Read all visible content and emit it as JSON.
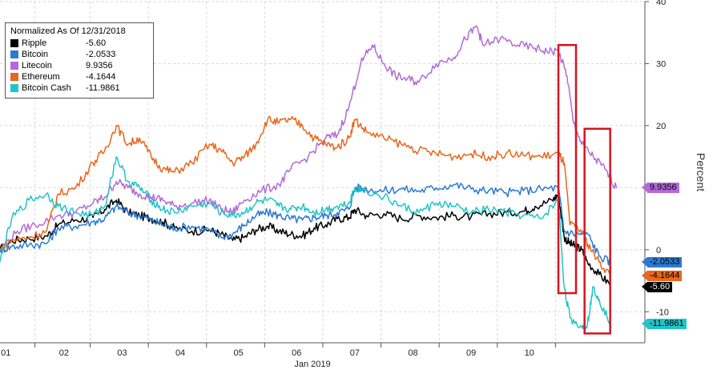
{
  "chart_data": {
    "type": "line",
    "x_tick_labels": [
      "01",
      "02",
      "03",
      "04",
      "05",
      "06",
      "07",
      "08",
      "09",
      "10"
    ],
    "x_group_label": "Jan 2019",
    "y_ticks": [
      40,
      30,
      20,
      10,
      0,
      -10
    ],
    "ylim": [
      -15,
      40
    ],
    "ylabel": "Percent",
    "legend_title": "Normalized As Of 12/31/2018",
    "legend_position": "top-left",
    "grid": true,
    "series": [
      {
        "name": "Ripple",
        "value_label": "-5.60",
        "color": "#000000",
        "last": -5.6,
        "points": [
          [
            0.0,
            0.0
          ],
          [
            0.2,
            1.5
          ],
          [
            0.5,
            1.8
          ],
          [
            0.8,
            2.2
          ],
          [
            1.0,
            4.0
          ],
          [
            1.3,
            4.8
          ],
          [
            1.6,
            5.2
          ],
          [
            1.8,
            6.5
          ],
          [
            2.0,
            8.0
          ],
          [
            2.2,
            6.0
          ],
          [
            2.4,
            5.5
          ],
          [
            2.6,
            5.0
          ],
          [
            2.8,
            4.5
          ],
          [
            3.0,
            3.5
          ],
          [
            3.3,
            3.0
          ],
          [
            3.6,
            3.2
          ],
          [
            3.8,
            2.5
          ],
          [
            4.0,
            1.5
          ],
          [
            4.2,
            2.0
          ],
          [
            4.4,
            3.2
          ],
          [
            4.6,
            3.8
          ],
          [
            4.8,
            3.0
          ],
          [
            5.0,
            2.5
          ],
          [
            5.2,
            2.2
          ],
          [
            5.4,
            3.5
          ],
          [
            5.6,
            4.0
          ],
          [
            5.8,
            5.0
          ],
          [
            6.0,
            5.2
          ],
          [
            6.1,
            6.5
          ],
          [
            6.3,
            5.5
          ],
          [
            6.6,
            5.8
          ],
          [
            6.9,
            5.0
          ],
          [
            7.2,
            5.5
          ],
          [
            7.5,
            5.2
          ],
          [
            7.8,
            5.5
          ],
          [
            8.1,
            5.3
          ],
          [
            8.4,
            5.8
          ],
          [
            8.7,
            6.0
          ],
          [
            9.0,
            6.2
          ],
          [
            9.2,
            7.0
          ],
          [
            9.5,
            8.0
          ],
          [
            9.6,
            9.0
          ],
          [
            9.7,
            2.0
          ],
          [
            9.8,
            1.0
          ],
          [
            9.9,
            0.5
          ],
          [
            10.0,
            0.0
          ],
          [
            10.1,
            -2.0
          ],
          [
            10.3,
            -4.0
          ],
          [
            10.5,
            -5.6
          ]
        ]
      },
      {
        "name": "Bitcoin",
        "value_label": "-2.0533",
        "color": "#2b7ad2",
        "last": -2.0533,
        "points": [
          [
            0.0,
            0.0
          ],
          [
            0.2,
            0.5
          ],
          [
            0.5,
            0.8
          ],
          [
            0.8,
            1.0
          ],
          [
            1.0,
            3.5
          ],
          [
            1.3,
            3.8
          ],
          [
            1.6,
            4.5
          ],
          [
            1.8,
            5.0
          ],
          [
            2.0,
            7.0
          ],
          [
            2.2,
            6.0
          ],
          [
            2.4,
            5.5
          ],
          [
            2.6,
            4.8
          ],
          [
            2.8,
            4.0
          ],
          [
            3.0,
            3.5
          ],
          [
            3.3,
            3.8
          ],
          [
            3.6,
            3.2
          ],
          [
            3.8,
            2.0
          ],
          [
            4.0,
            2.5
          ],
          [
            4.2,
            4.0
          ],
          [
            4.4,
            5.5
          ],
          [
            4.6,
            6.0
          ],
          [
            4.8,
            5.5
          ],
          [
            5.0,
            5.0
          ],
          [
            5.2,
            4.8
          ],
          [
            5.4,
            5.2
          ],
          [
            5.6,
            5.5
          ],
          [
            5.8,
            6.0
          ],
          [
            6.0,
            6.5
          ],
          [
            6.1,
            10.0
          ],
          [
            6.3,
            9.8
          ],
          [
            6.6,
            9.5
          ],
          [
            6.9,
            9.8
          ],
          [
            7.2,
            9.5
          ],
          [
            7.5,
            10.0
          ],
          [
            7.8,
            10.5
          ],
          [
            8.1,
            9.8
          ],
          [
            8.4,
            9.5
          ],
          [
            8.7,
            9.2
          ],
          [
            9.0,
            9.5
          ],
          [
            9.3,
            9.8
          ],
          [
            9.6,
            10.0
          ],
          [
            9.7,
            3.0
          ],
          [
            9.9,
            2.5
          ],
          [
            10.1,
            2.6
          ],
          [
            10.3,
            -1.0
          ],
          [
            10.5,
            -2.05
          ]
        ]
      },
      {
        "name": "Litecoin",
        "value_label": "9.9356",
        "color": "#b36ad8",
        "last": 9.9356,
        "points": [
          [
            0.0,
            0.0
          ],
          [
            0.3,
            3.0
          ],
          [
            0.6,
            4.0
          ],
          [
            1.0,
            5.5
          ],
          [
            1.3,
            6.0
          ],
          [
            1.6,
            7.5
          ],
          [
            1.8,
            8.5
          ],
          [
            2.0,
            11.0
          ],
          [
            2.2,
            10.0
          ],
          [
            2.4,
            9.0
          ],
          [
            2.6,
            8.5
          ],
          [
            2.8,
            8.0
          ],
          [
            3.0,
            7.0
          ],
          [
            3.3,
            7.5
          ],
          [
            3.6,
            8.0
          ],
          [
            3.8,
            6.5
          ],
          [
            4.0,
            6.0
          ],
          [
            4.2,
            8.0
          ],
          [
            4.5,
            9.5
          ],
          [
            4.8,
            10.5
          ],
          [
            5.0,
            13.0
          ],
          [
            5.3,
            15.0
          ],
          [
            5.6,
            18.0
          ],
          [
            5.8,
            18.5
          ],
          [
            6.0,
            23.0
          ],
          [
            6.2,
            30.0
          ],
          [
            6.4,
            33.0
          ],
          [
            6.6,
            30.0
          ],
          [
            6.8,
            28.0
          ],
          [
            7.0,
            27.5
          ],
          [
            7.2,
            27.0
          ],
          [
            7.5,
            30.0
          ],
          [
            7.8,
            31.0
          ],
          [
            8.0,
            34.0
          ],
          [
            8.2,
            36.0
          ],
          [
            8.3,
            33.0
          ],
          [
            8.6,
            34.0
          ],
          [
            8.9,
            33.0
          ],
          [
            9.2,
            32.5
          ],
          [
            9.4,
            32.0
          ],
          [
            9.6,
            32.0
          ],
          [
            9.75,
            28.0
          ],
          [
            9.85,
            21.0
          ],
          [
            10.0,
            17.0
          ],
          [
            10.2,
            15.0
          ],
          [
            10.4,
            13.0
          ],
          [
            10.6,
            9.94
          ]
        ]
      },
      {
        "name": "Ethereum",
        "value_label": "-4.1644",
        "color": "#e8661d",
        "last": -4.1644,
        "points": [
          [
            0.0,
            0.0
          ],
          [
            0.2,
            1.5
          ],
          [
            0.5,
            2.0
          ],
          [
            0.8,
            3.0
          ],
          [
            1.0,
            9.0
          ],
          [
            1.3,
            10.0
          ],
          [
            1.6,
            14.0
          ],
          [
            1.8,
            16.0
          ],
          [
            2.0,
            20.0
          ],
          [
            2.2,
            17.0
          ],
          [
            2.4,
            18.0
          ],
          [
            2.6,
            15.0
          ],
          [
            2.8,
            13.0
          ],
          [
            3.0,
            12.5
          ],
          [
            3.3,
            14.0
          ],
          [
            3.6,
            17.0
          ],
          [
            3.8,
            16.0
          ],
          [
            4.0,
            14.0
          ],
          [
            4.2,
            15.0
          ],
          [
            4.4,
            17.0
          ],
          [
            4.6,
            21.0
          ],
          [
            4.8,
            20.5
          ],
          [
            5.0,
            21.0
          ],
          [
            5.2,
            20.0
          ],
          [
            5.4,
            18.0
          ],
          [
            5.6,
            17.0
          ],
          [
            5.8,
            16.5
          ],
          [
            6.0,
            18.0
          ],
          [
            6.1,
            21.0
          ],
          [
            6.3,
            19.0
          ],
          [
            6.6,
            18.0
          ],
          [
            6.9,
            17.0
          ],
          [
            7.2,
            16.0
          ],
          [
            7.5,
            15.5
          ],
          [
            7.8,
            15.0
          ],
          [
            8.1,
            15.5
          ],
          [
            8.4,
            15.0
          ],
          [
            8.7,
            15.5
          ],
          [
            9.0,
            15.2
          ],
          [
            9.3,
            15.0
          ],
          [
            9.6,
            15.5
          ],
          [
            9.7,
            14.0
          ],
          [
            9.8,
            4.0
          ],
          [
            10.0,
            3.0
          ],
          [
            10.1,
            1.0
          ],
          [
            10.3,
            -2.0
          ],
          [
            10.5,
            -4.16
          ]
        ]
      },
      {
        "name": "Bitcoin Cash",
        "value_label": "-11.9861",
        "color": "#22c4c8",
        "last": -11.9861,
        "points": [
          [
            0.0,
            -2.0
          ],
          [
            0.2,
            5.0
          ],
          [
            0.5,
            8.0
          ],
          [
            0.8,
            9.0
          ],
          [
            1.0,
            7.0
          ],
          [
            1.3,
            6.0
          ],
          [
            1.6,
            5.5
          ],
          [
            1.8,
            7.0
          ],
          [
            2.0,
            15.0
          ],
          [
            2.2,
            11.0
          ],
          [
            2.4,
            10.0
          ],
          [
            2.6,
            8.0
          ],
          [
            2.8,
            6.5
          ],
          [
            3.0,
            6.0
          ],
          [
            3.3,
            7.0
          ],
          [
            3.6,
            7.5
          ],
          [
            3.8,
            6.0
          ],
          [
            4.0,
            5.5
          ],
          [
            4.2,
            6.0
          ],
          [
            4.4,
            7.5
          ],
          [
            4.6,
            8.0
          ],
          [
            4.8,
            7.0
          ],
          [
            5.0,
            6.5
          ],
          [
            5.2,
            7.0
          ],
          [
            5.4,
            6.0
          ],
          [
            5.6,
            6.5
          ],
          [
            5.8,
            7.0
          ],
          [
            6.0,
            7.5
          ],
          [
            6.1,
            10.0
          ],
          [
            6.3,
            9.5
          ],
          [
            6.6,
            8.5
          ],
          [
            6.9,
            7.0
          ],
          [
            7.2,
            6.0
          ],
          [
            7.5,
            7.5
          ],
          [
            7.8,
            7.0
          ],
          [
            8.1,
            6.0
          ],
          [
            8.4,
            6.5
          ],
          [
            8.7,
            6.0
          ],
          [
            9.0,
            5.5
          ],
          [
            9.3,
            5.0
          ],
          [
            9.6,
            8.0
          ],
          [
            9.7,
            -6.0
          ],
          [
            9.8,
            -11.0
          ],
          [
            10.0,
            -12.5
          ],
          [
            10.1,
            -12.0
          ],
          [
            10.2,
            -6.0
          ],
          [
            10.3,
            -8.0
          ],
          [
            10.5,
            -11.99
          ]
        ]
      }
    ]
  },
  "colors": {
    "highlight_box": "#d4141f",
    "grid": "#d7d7d7",
    "axis": "#555555"
  }
}
